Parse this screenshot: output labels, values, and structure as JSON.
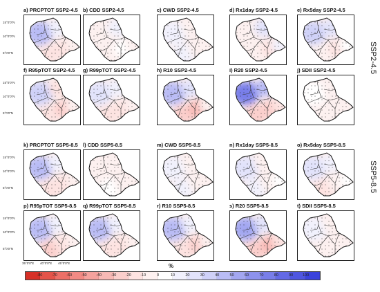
{
  "panels": [
    {
      "label": "a) PRCPTOT  SSP2-4.5",
      "pattern": [
        40,
        15,
        -20,
        -15,
        -10
      ]
    },
    {
      "label": "b) CDD  SSP2-4.5",
      "pattern": [
        -5,
        10,
        -10,
        5,
        -5
      ]
    },
    {
      "label": "c) CWD  SSP2-4.5",
      "pattern": [
        10,
        -10,
        15,
        -5,
        -10
      ]
    },
    {
      "label": "d) Rx1day  SSP2-4.5",
      "pattern": [
        -10,
        20,
        -10,
        -15,
        10
      ]
    },
    {
      "label": "e) Rx5day  SSP2-4.5",
      "pattern": [
        35,
        20,
        -10,
        -15,
        5
      ]
    },
    {
      "label": "f) R95pTOT  SSP2-4.5",
      "pattern": [
        30,
        -20,
        -15,
        -25,
        -10
      ]
    },
    {
      "label": "g) R99pTOT  SSP2-4.5",
      "pattern": [
        25,
        15,
        -15,
        -20,
        -5
      ]
    },
    {
      "label": "h) R10  SSP2-4.5",
      "pattern": [
        45,
        20,
        -30,
        -35,
        -10
      ]
    },
    {
      "label": "i) R20  SSP2-4.5",
      "pattern": [
        70,
        40,
        -25,
        -30,
        -15
      ]
    },
    {
      "label": "j) SDII  SSP2-4.5",
      "pattern": [
        5,
        -5,
        -10,
        -5,
        -8
      ]
    },
    {
      "label": "k) PRCPTOT  SSP5-8.5",
      "pattern": [
        40,
        10,
        -20,
        -15,
        -10
      ]
    },
    {
      "label": "l) CDD  SSP5-8.5",
      "pattern": [
        -5,
        -10,
        5,
        -5,
        -8
      ]
    },
    {
      "label": "m) CWD  SSP5-8.5",
      "pattern": [
        10,
        -10,
        10,
        -5,
        -5
      ]
    },
    {
      "label": "n) Rx1day  SSP5-8.5",
      "pattern": [
        20,
        -10,
        10,
        -10,
        5
      ]
    },
    {
      "label": "o) Rx5day  SSP5-8.5",
      "pattern": [
        25,
        10,
        -15,
        -10,
        5
      ]
    },
    {
      "label": "p) R95pTOT  SSP5-8.5",
      "pattern": [
        45,
        15,
        -25,
        -20,
        -10
      ]
    },
    {
      "label": "q) R99pTOT  SSP5-8.5",
      "pattern": [
        40,
        15,
        -20,
        -15,
        -10
      ]
    },
    {
      "label": "r) R10  SSP5-8.5",
      "pattern": [
        40,
        15,
        -20,
        -25,
        -10
      ]
    },
    {
      "label": "s) R20  SSP5-8.5",
      "pattern": [
        50,
        20,
        -30,
        -35,
        -20
      ]
    },
    {
      "label": "t) SDII  SSP5-8.5",
      "pattern": [
        15,
        -10,
        -5,
        -10,
        -5
      ]
    }
  ],
  "row_labels": [
    "SSP2-4.5",
    "SSP5-8.5"
  ],
  "lat_ticks": [
    "15°0'0\"N",
    "10°0'0\"N",
    "5°0'0\"N"
  ],
  "lon_ticks": [
    "35°0'0\"E",
    "40°0'0\"E",
    "45°0'0\"E"
  ],
  "colorbar": {
    "title": "%",
    "ticks": [
      "-80",
      "-70",
      "-60",
      "-50",
      "-40",
      "-30",
      "-20",
      "-10",
      "0",
      "10",
      "20",
      "30",
      "40",
      "50",
      "60",
      "70",
      "80",
      "90",
      "100"
    ],
    "range": [
      -90,
      110
    ],
    "colors": [
      "#d73027",
      "#e4544a",
      "#ec6f67",
      "#f28a84",
      "#f5a29d",
      "#f8b9b5",
      "#fbcfcc",
      "#fde3e1",
      "#fdf1f0",
      "#ffffff",
      "#f1f1fd",
      "#e2e3fb",
      "#cfd1f8",
      "#b9bcf5",
      "#a3a7f1",
      "#8d92ed",
      "#787ee9",
      "#6369e5",
      "#4f56e0",
      "#3a42dc"
    ]
  }
}
